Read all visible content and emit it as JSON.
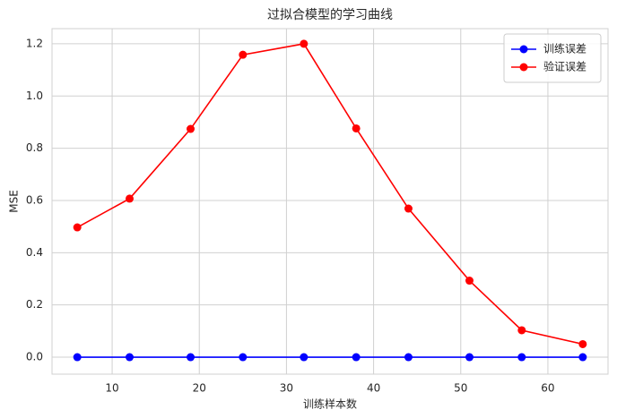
{
  "chart_data": {
    "type": "line",
    "title": "过拟合模型的学习曲线",
    "xlabel": "训练样本数",
    "ylabel": "MSE",
    "x": [
      6,
      12,
      19,
      25,
      32,
      38,
      44,
      51,
      57,
      64
    ],
    "series": [
      {
        "name": "训练误差",
        "color": "#0000ff",
        "values": [
          0,
          0,
          0,
          0,
          0,
          0,
          0,
          0,
          0,
          0
        ]
      },
      {
        "name": "验证误差",
        "color": "#ff0000",
        "values": [
          0.497,
          0.607,
          0.874,
          1.158,
          1.2,
          0.876,
          0.569,
          0.293,
          0.103,
          0.05
        ]
      }
    ],
    "xlim": [
      3.1,
      66.9
    ],
    "xticks": [
      10,
      20,
      30,
      40,
      50,
      60
    ],
    "ylim": [
      -0.065,
      1.258
    ],
    "yticks": [
      {
        "value": 0,
        "label": "0.0"
      },
      0.2,
      0.4,
      0.6,
      0.8,
      {
        "value": 1,
        "label": "1.0"
      },
      1.2
    ],
    "grid": true,
    "legend": "upper right"
  }
}
